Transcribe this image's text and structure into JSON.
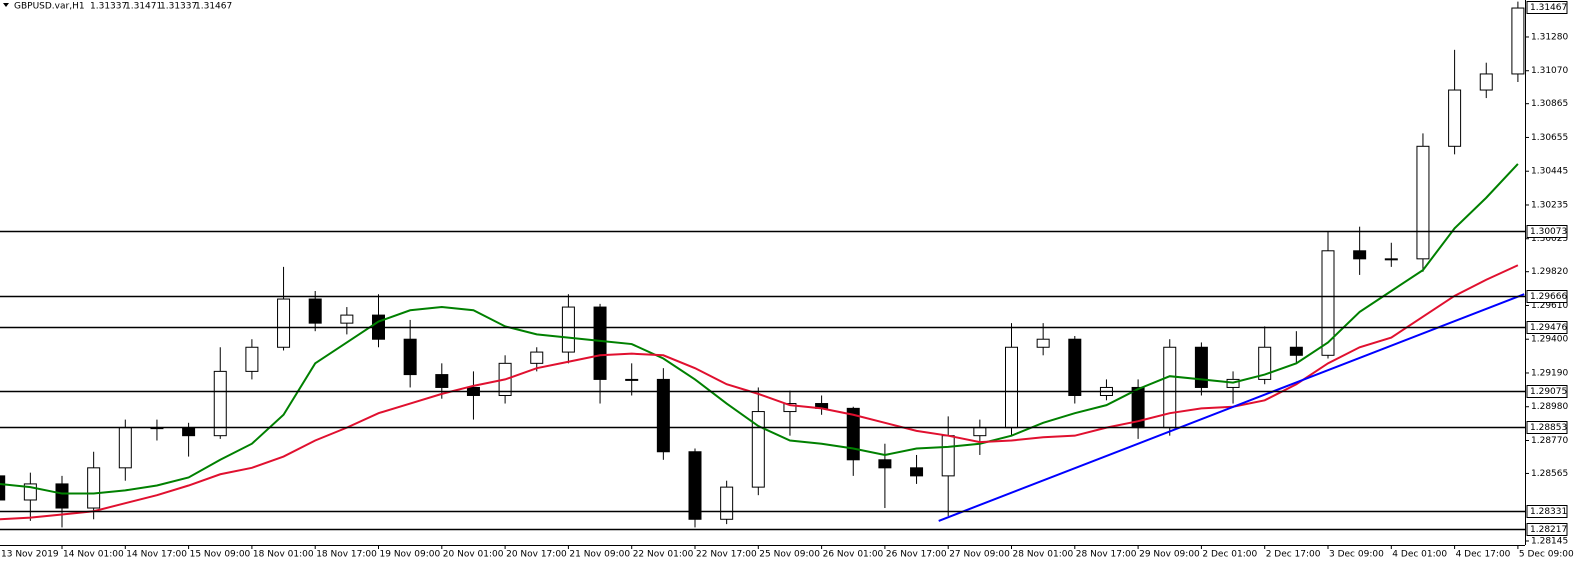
{
  "chart_data": {
    "type": "candlestick",
    "header": {
      "symbol": "GBPUSD.var,H1",
      "ohlc": [
        1.31337,
        1.31471,
        1.31337,
        1.31467
      ]
    },
    "x": [
      "13 Nov 2019",
      null,
      "14 Nov 01:00",
      null,
      "14 Nov 17:00",
      null,
      "15 Nov 09:00",
      null,
      "18 Nov 01:00",
      null,
      "18 Nov 17:00",
      null,
      "19 Nov 09:00",
      null,
      "20 Nov 01:00",
      null,
      "20 Nov 17:00",
      null,
      "21 Nov 09:00",
      null,
      "22 Nov 01:00",
      null,
      "22 Nov 17:00",
      null,
      "25 Nov 09:00",
      null,
      "26 Nov 01:00",
      null,
      "26 Nov 17:00",
      null,
      "27 Nov 09:00",
      null,
      "28 Nov 01:00",
      null,
      "28 Nov 17:00",
      null,
      "29 Nov 09:00",
      null,
      "2 Dec 01:00",
      null,
      "2 Dec 17:00",
      null,
      "3 Dec 09:00",
      null,
      "4 Dec 01:00",
      null,
      "4 Dec 17:00",
      null,
      "5 Dec 09:00"
    ],
    "open": [
      1.2855,
      1.284,
      1.285,
      1.2835,
      1.286,
      1.2885,
      1.2885,
      1.288,
      1.292,
      1.2935,
      1.2965,
      1.295,
      1.2955,
      1.294,
      1.2918,
      1.291,
      1.2905,
      1.2925,
      1.2932,
      1.296,
      1.2915,
      1.2915,
      1.287,
      1.2828,
      1.2848,
      1.2895,
      1.29,
      1.2897,
      1.2865,
      1.286,
      1.2855,
      1.288,
      1.2885,
      1.2935,
      1.294,
      1.2905,
      1.291,
      1.2885,
      1.2935,
      1.291,
      1.2915,
      1.2935,
      1.293,
      1.2995,
      1.299,
      1.299,
      1.306,
      1.3095,
      1.3105
    ],
    "high": [
      1.2858,
      1.2857,
      1.2855,
      1.287,
      1.289,
      1.289,
      1.2888,
      1.2935,
      1.294,
      1.2985,
      1.297,
      1.296,
      1.2968,
      1.2952,
      1.2925,
      1.292,
      1.293,
      1.2935,
      1.2968,
      1.2962,
      1.2925,
      1.2922,
      1.2872,
      1.2852,
      1.291,
      1.2908,
      1.2905,
      1.2898,
      1.2875,
      1.2868,
      1.2892,
      1.289,
      1.295,
      1.295,
      1.2942,
      1.2915,
      1.2915,
      1.294,
      1.2938,
      1.292,
      1.2948,
      1.2945,
      1.3007,
      1.301,
      1.3,
      1.3068,
      1.312,
      1.3112,
      1.315
    ],
    "low": [
      1.2825,
      1.2827,
      1.2823,
      1.2828,
      1.2852,
      1.2877,
      1.2867,
      1.2878,
      1.2915,
      1.2933,
      1.2945,
      1.2943,
      1.2935,
      1.291,
      1.2903,
      1.289,
      1.29,
      1.292,
      1.2925,
      1.29,
      1.2905,
      1.2865,
      1.2823,
      1.2825,
      1.2843,
      1.288,
      1.2893,
      1.2855,
      1.2835,
      1.285,
      1.283,
      1.2868,
      1.288,
      1.293,
      1.29,
      1.2902,
      1.2878,
      1.288,
      1.2905,
      1.29,
      1.2912,
      1.2925,
      1.2928,
      1.298,
      1.2985,
      1.2982,
      1.3055,
      1.309,
      1.31
    ],
    "close": [
      1.284,
      1.285,
      1.2835,
      1.286,
      1.2885,
      1.2885,
      1.288,
      1.292,
      1.2935,
      1.2965,
      1.295,
      1.2955,
      1.294,
      1.2918,
      1.291,
      1.2905,
      1.2925,
      1.2932,
      1.296,
      1.2915,
      1.2915,
      1.287,
      1.2828,
      1.2848,
      1.2895,
      1.29,
      1.2897,
      1.2865,
      1.286,
      1.2855,
      1.288,
      1.2885,
      1.2935,
      1.294,
      1.2905,
      1.291,
      1.2885,
      1.2935,
      1.291,
      1.2915,
      1.2935,
      1.293,
      1.2995,
      1.299,
      1.299,
      1.306,
      1.3095,
      1.3105,
      1.3146
    ],
    "overlays": [
      {
        "color": "#008000",
        "values": [
          1.285,
          1.2848,
          1.2844,
          1.2844,
          1.2846,
          1.2849,
          1.2854,
          1.2865,
          1.2875,
          1.2893,
          1.2925,
          1.2938,
          1.2951,
          1.2958,
          1.296,
          1.2958,
          1.2948,
          1.2943,
          1.2941,
          1.2939,
          1.2937,
          1.2928,
          1.2915,
          1.29,
          1.2886,
          1.2877,
          1.2875,
          1.2872,
          1.2868,
          1.2872,
          1.2873,
          1.2875,
          1.288,
          1.2888,
          1.2894,
          1.2899,
          1.2909,
          1.2917,
          1.2915,
          1.2913,
          1.2918,
          1.2925,
          1.2938,
          1.2957,
          1.297,
          1.2983,
          1.3009,
          1.3028,
          1.3049
        ]
      },
      {
        "color": "#e0102f",
        "values": [
          1.2828,
          1.2829,
          1.2831,
          1.2833,
          1.2838,
          1.2843,
          1.2849,
          1.2856,
          1.286,
          1.2867,
          1.2877,
          1.2885,
          1.2894,
          1.29,
          1.2906,
          1.2911,
          1.2915,
          1.2922,
          1.2926,
          1.293,
          1.2931,
          1.293,
          1.2922,
          1.2912,
          1.2906,
          1.2899,
          1.2897,
          1.2893,
          1.2888,
          1.2883,
          1.288,
          1.2876,
          1.2877,
          1.2879,
          1.288,
          1.2885,
          1.2889,
          1.2894,
          1.2897,
          1.2898,
          1.2902,
          1.2912,
          1.2925,
          1.2935,
          1.2941,
          1.2954,
          1.2967,
          1.2977,
          1.2986
        ]
      }
    ],
    "trendline": {
      "color": "#0000ff",
      "x": [
        29.7,
        48.2
      ],
      "y": [
        1.2827,
        1.2968
      ]
    },
    "levels": {
      "color": "#000000",
      "values": [
        1.30073,
        1.29666,
        1.29476,
        1.29075,
        1.28853,
        1.28331,
        1.28217
      ]
    },
    "ylim": [
      1.2812,
      1.3151
    ],
    "yticks": [
      {
        "value": 1.3128,
        "label": "1.31280"
      },
      {
        "value": 1.3107,
        "label": "1.31070"
      },
      1.30865,
      1.30655,
      1.30445,
      1.30235,
      1.30025,
      {
        "value": 1.2982,
        "label": "1.29820"
      },
      {
        "value": 1.2961,
        "label": "1.29610"
      },
      {
        "value": 1.294,
        "label": "1.29400"
      },
      {
        "value": 1.2919,
        "label": "1.29190"
      },
      {
        "value": 1.2898,
        "label": "1.28980"
      },
      {
        "value": 1.2877,
        "label": "1.28770"
      },
      1.28565,
      1.28145
    ]
  }
}
